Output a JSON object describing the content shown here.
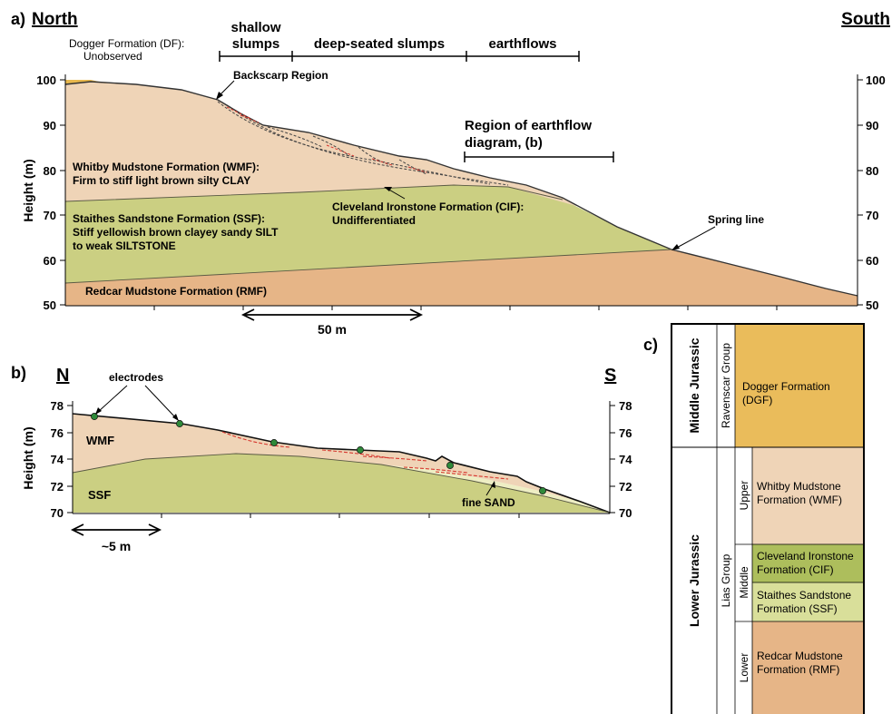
{
  "panel_a": {
    "letter": "a)",
    "north": "North",
    "south": "South",
    "segments": [
      {
        "label_lines": [
          "shallow",
          "slumps"
        ]
      },
      {
        "label_lines": [
          "deep-seated slumps"
        ]
      },
      {
        "label_lines": [
          "earthflows"
        ]
      }
    ],
    "ylabel": "Height (m)",
    "yticks": [
      "100",
      "90",
      "80",
      "70",
      "60",
      "50"
    ],
    "scale_label": "50 m",
    "annotations": {
      "dogger": [
        "Dogger Formation (DF):",
        "Unobserved"
      ],
      "backscarp": "Backscarp Region",
      "region": [
        "Region of earthflow",
        "diagram, (b)"
      ],
      "whitby": [
        "Whitby Mudstone Formation (WMF):",
        "Firm to stiff light brown silty CLAY"
      ],
      "cleveland": [
        "Cleveland Ironstone Formation (CIF):",
        "Undifferentiated"
      ],
      "staithes": [
        "Staithes Sandstone Formation (SSF):",
        "Stiff yellowish brown clayey sandy SILT",
        "to weak SILTSTONE"
      ],
      "spring": "Spring line",
      "redcar": "Redcar Mudstone Formation (RMF)"
    }
  },
  "panel_b": {
    "letter": "b)",
    "north": "N",
    "south": "S",
    "ylabel": "Height (m)",
    "yticks": [
      "78",
      "76",
      "74",
      "72",
      "70"
    ],
    "electrodes_label": "electrodes",
    "wmf": "WMF",
    "ssf": "SSF",
    "sand": "fine SAND",
    "scale_label": "~5 m"
  },
  "panel_c": {
    "letter": "c)",
    "series": [
      {
        "name": "Middle Jurassic"
      },
      {
        "name": "Lower Jurassic"
      }
    ],
    "groups": [
      {
        "name": "Ravenscar Group"
      },
      {
        "name": "Lias Group"
      }
    ],
    "subdivisions": [
      "Upper",
      "Middle",
      "Lower"
    ],
    "formations": [
      {
        "lines": [
          "Dogger Formation",
          "(DGF)"
        ],
        "color": "#eabc5b"
      },
      {
        "lines": [
          "Whitby Mudstone",
          "Formation (WMF)"
        ],
        "color": "#efd4b7"
      },
      {
        "lines": [
          "Cleveland Ironstone",
          "Formation (CIF)"
        ],
        "color": "#adbe5c"
      },
      {
        "lines": [
          "Staithes Sandstone",
          "Formation (SSF)"
        ],
        "color": "#d9df9a"
      },
      {
        "lines": [
          "Redcar Mudstone",
          "Formation (RMF)"
        ],
        "color": "#e6b587"
      }
    ]
  },
  "colors": {
    "wmf": "#efd4b7",
    "ssf": "#cbcf82",
    "rmf": "#e6b587",
    "dogger": "#e8b84e",
    "slip": "#d6382f",
    "electrode": "#2f8a3a"
  }
}
